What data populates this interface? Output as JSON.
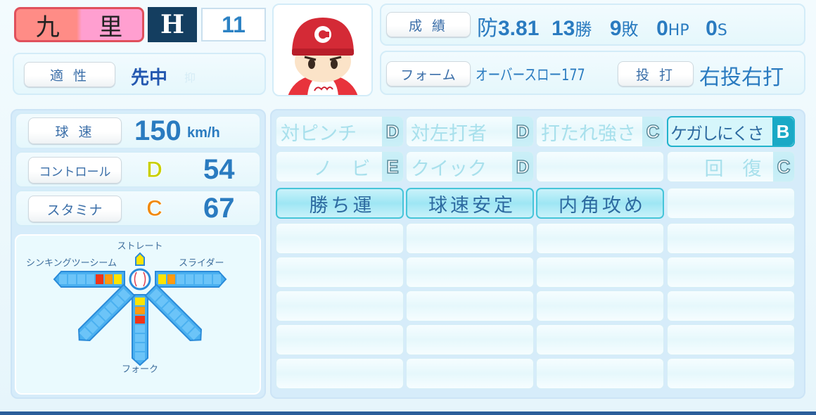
{
  "player": {
    "name_1": "九",
    "name_2": "里",
    "team_logo": "H",
    "number": "11"
  },
  "aptitude": {
    "label": "適 性",
    "values": "先中",
    "dim_value": "抑"
  },
  "record": {
    "label": "成 績",
    "era_prefix": "防",
    "era": "3.81",
    "wins": "13",
    "wins_suffix": "勝",
    "losses": "9",
    "losses_suffix": "敗",
    "hp": "0",
    "hp_suffix": "HP",
    "saves": "0",
    "saves_suffix": "S"
  },
  "form": {
    "label": "フォーム",
    "value": "オーバースロー177",
    "hand_label": "投 打",
    "hand_value": "右投右打"
  },
  "basic": {
    "speed": {
      "label": "球 速",
      "value": "150",
      "unit": "km/h"
    },
    "control": {
      "label": "コントロール",
      "grade": "D",
      "value": "54",
      "grade_color": "#c8d000"
    },
    "stamina": {
      "label": "スタミナ",
      "grade": "C",
      "value": "67",
      "grade_color": "#f08a10"
    }
  },
  "pitches": {
    "straight": "ストレート",
    "sinker": "シンキングツーシーム",
    "slider": "スライダー",
    "fork": "フォーク",
    "levels": {
      "sinker": 3,
      "slider": 2,
      "fork": 3,
      "shuuto_diag": 0,
      "curve_diag": 0
    },
    "level_colors": [
      "#ffe400",
      "#ff9a10",
      "#f03418"
    ]
  },
  "abilities": [
    {
      "text": "対ピンチ",
      "grade": "D",
      "style": "dim"
    },
    {
      "text": "対左打者",
      "grade": "D",
      "style": "dim"
    },
    {
      "text": "打たれ強さ",
      "grade": "C",
      "style": "dim"
    },
    {
      "text": "ケガしにくさ",
      "grade": "B",
      "style": "hl"
    },
    {
      "text": "ノ　ビ",
      "grade": "E",
      "style": "dim"
    },
    {
      "text": "クイック",
      "grade": "D",
      "style": "dim"
    },
    {
      "text": "",
      "grade": "",
      "style": "empty"
    },
    {
      "text": "回　復",
      "grade": "C",
      "style": "dim"
    },
    {
      "text": "勝ち運",
      "grade": "",
      "style": "active"
    },
    {
      "text": "球速安定",
      "grade": "",
      "style": "active"
    },
    {
      "text": "内角攻め",
      "grade": "",
      "style": "active"
    }
  ]
}
